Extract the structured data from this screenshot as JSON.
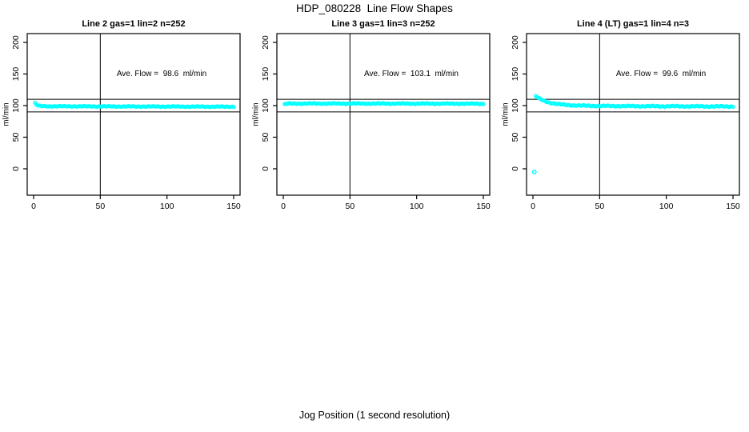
{
  "figure": {
    "title": "HDP_080228  Line Flow Shapes",
    "xlabel": "Jog Position (1 second resolution)",
    "background_color": "#ffffff",
    "axis_color": "#000000",
    "point_color": "#00ffff"
  },
  "chart_data": [
    {
      "type": "scatter",
      "title": "Line 2 gas=1 lin=2 n=252",
      "annotation": "Ave. Flow =  98.6  ml/min",
      "ave_flow_ml_min": 98.6,
      "gas": 1,
      "lin": 2,
      "n": 252,
      "ylabel": "ml/min",
      "x_ticks": [
        0,
        50,
        100,
        150
      ],
      "y_ticks": [
        0,
        50,
        100,
        150,
        200
      ],
      "xlim": [
        0,
        150
      ],
      "ylim": [
        0,
        200
      ],
      "grid": false,
      "reference_lines": {
        "horizontal": [
          90,
          110
        ],
        "vertical": [
          50
        ]
      },
      "series": [
        {
          "name": "flow-shape",
          "marker": "open-circle",
          "color": "#00ffff",
          "x_start": 1,
          "x_end": 150,
          "x_step": 1,
          "jitter": 0.7,
          "keypoints": [
            [
              1,
              104.0
            ],
            [
              2,
              101.8
            ],
            [
              3,
              100.3
            ],
            [
              4,
              99.5
            ],
            [
              6,
              99.1
            ],
            [
              10,
              98.9
            ],
            [
              30,
              98.8
            ],
            [
              60,
              98.6
            ],
            [
              100,
              98.5
            ],
            [
              150,
              98.2
            ]
          ]
        }
      ]
    },
    {
      "type": "scatter",
      "title": "Line 3 gas=1 lin=3 n=252",
      "annotation": "Ave. Flow =  103.1  ml/min",
      "ave_flow_ml_min": 103.1,
      "gas": 1,
      "lin": 3,
      "n": 252,
      "ylabel": "ml/min",
      "x_ticks": [
        0,
        50,
        100,
        150
      ],
      "y_ticks": [
        0,
        50,
        100,
        150,
        200
      ],
      "xlim": [
        0,
        150
      ],
      "ylim": [
        0,
        200
      ],
      "grid": false,
      "reference_lines": {
        "horizontal": [
          90,
          110
        ],
        "vertical": [
          50
        ]
      },
      "series": [
        {
          "name": "flow-shape",
          "marker": "open-circle",
          "color": "#00ffff",
          "x_start": 1,
          "x_end": 150,
          "x_step": 1,
          "jitter": 0.9,
          "keypoints": [
            [
              1,
              101.8
            ],
            [
              2,
              102.7
            ],
            [
              4,
              103.1
            ],
            [
              20,
              103.2
            ],
            [
              60,
              103.2
            ],
            [
              100,
              103.1
            ],
            [
              150,
              102.9
            ]
          ]
        }
      ]
    },
    {
      "type": "scatter",
      "title": "Line 4 (LT) gas=1 lin=4 n=3",
      "annotation": "Ave. Flow =  99.6  ml/min",
      "ave_flow_ml_min": 99.6,
      "gas": 1,
      "lin": 4,
      "n": 3,
      "ylabel": "ml/min",
      "x_ticks": [
        0,
        50,
        100,
        150
      ],
      "y_ticks": [
        0,
        50,
        100,
        150,
        200
      ],
      "xlim": [
        0,
        150
      ],
      "ylim": [
        0,
        200
      ],
      "grid": false,
      "reference_lines": {
        "horizontal": [
          90,
          110
        ],
        "vertical": [
          50
        ]
      },
      "series": [
        {
          "name": "flow-shape",
          "marker": "open-circle",
          "color": "#00ffff",
          "x_start": 2,
          "x_end": 150,
          "x_step": 1,
          "jitter": 1.0,
          "keypoints": [
            [
              2,
              115.0
            ],
            [
              3,
              113.4
            ],
            [
              4,
              112.0
            ],
            [
              5,
              110.8
            ],
            [
              6,
              109.7
            ],
            [
              8,
              107.8
            ],
            [
              10,
              106.3
            ],
            [
              12,
              105.0
            ],
            [
              15,
              103.6
            ],
            [
              18,
              102.6
            ],
            [
              22,
              101.6
            ],
            [
              26,
              100.9
            ],
            [
              32,
              100.2
            ],
            [
              40,
              99.7
            ],
            [
              50,
              99.4
            ],
            [
              70,
              99.1
            ],
            [
              100,
              98.9
            ],
            [
              150,
              98.6
            ]
          ]
        },
        {
          "name": "startup-outlier",
          "marker": "open-circle",
          "color": "#00ffff",
          "points": [
            [
              1,
              -5
            ]
          ]
        }
      ]
    }
  ]
}
